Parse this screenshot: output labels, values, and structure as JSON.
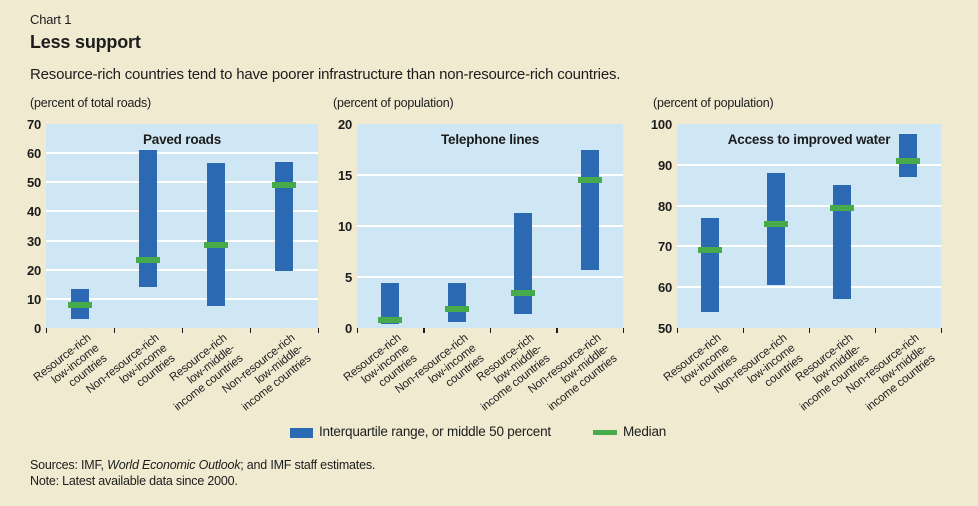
{
  "page": {
    "kicker": "Chart 1",
    "title": "Less support",
    "subtitle": "Resource-rich countries tend to have poorer infrastructure than non-resource-rich countries.",
    "sources_prefix": "Sources: IMF, ",
    "sources_italic": "World Economic Outlook",
    "sources_suffix": "; and IMF staff estimates.",
    "note": "Note: Latest available data since 2000."
  },
  "legend": {
    "iqr_label": "Interquartile range, or middle 50 percent",
    "median_label": "Median"
  },
  "colors": {
    "page_bg": "#f0ead1",
    "plot_bg": "#cfe7f5",
    "bar": "#2b69b2",
    "median": "#47aa4b",
    "gridline": "#ffffff",
    "text": "#1c1c1c"
  },
  "chart_data": [
    {
      "type": "bar",
      "subtype": "interquartile-range",
      "title": "Paved roads",
      "ylabel": "(percent of total roads)",
      "ylim": [
        0,
        70
      ],
      "yticks": [
        0,
        10,
        20,
        30,
        40,
        50,
        60,
        70
      ],
      "grid": true,
      "categories": [
        "Resource-rich low-income countries",
        "Non-resource-rich low-income countries",
        "Resource-rich low-middle-income countries",
        "Non-resource-rich low-middle-income countries"
      ],
      "category_lines": [
        [
          "Resource-rich",
          "low-income",
          "countries"
        ],
        [
          "Non-resource-rich",
          "low-income",
          "countries"
        ],
        [
          "Resource-rich",
          "low-middle-",
          "income countries"
        ],
        [
          "Non-resource-rich",
          "low-middle-",
          "income countries"
        ]
      ],
      "series": [
        {
          "name": "Interquartile range, or middle 50 percent",
          "q1": [
            3,
            14,
            7.5,
            19.5
          ],
          "q3": [
            13.5,
            61,
            56.5,
            57
          ]
        },
        {
          "name": "Median",
          "values": [
            8,
            23.5,
            28.5,
            49
          ]
        }
      ]
    },
    {
      "type": "bar",
      "subtype": "interquartile-range",
      "title": "Telephone lines",
      "ylabel": "(percent of population)",
      "ylim": [
        0,
        20
      ],
      "yticks": [
        0,
        5,
        10,
        15,
        20
      ],
      "grid": true,
      "categories": [
        "Resource-rich low-income countries",
        "Non-resource-rich low-income countries",
        "Resource-rich low-middle-income countries",
        "Non-resource-rich low-middle-income countries"
      ],
      "category_lines": [
        [
          "Resource-rich",
          "low-income",
          "countries"
        ],
        [
          "Non-resource-rich",
          "low-income",
          "countries"
        ],
        [
          "Resource-rich",
          "low-middle-",
          "income countries"
        ],
        [
          "Non-resource-rich",
          "low-middle-",
          "income countries"
        ]
      ],
      "series": [
        {
          "name": "Interquartile range, or middle 50 percent",
          "q1": [
            0.4,
            0.6,
            1.4,
            5.7
          ],
          "q3": [
            4.4,
            4.4,
            11.3,
            17.5
          ]
        },
        {
          "name": "Median",
          "values": [
            0.8,
            1.9,
            3.4,
            14.5
          ]
        }
      ]
    },
    {
      "type": "bar",
      "subtype": "interquartile-range",
      "title": "Access to improved water",
      "ylabel": "(percent of population)",
      "ylim": [
        50,
        100
      ],
      "yticks": [
        50,
        60,
        70,
        80,
        90,
        100
      ],
      "grid": true,
      "categories": [
        "Resource-rich low-income countries",
        "Non-resource-rich low-income countries",
        "Resource-rich low-middle-income countries",
        "Non-resource-rich low-middle-income countries"
      ],
      "category_lines": [
        [
          "Resource-rich",
          "low-income",
          "countries"
        ],
        [
          "Non-resource-rich",
          "low-income",
          "countries"
        ],
        [
          "Resource-rich",
          "low-middle-",
          "income countries"
        ],
        [
          "Non-resource-rich",
          "low-middle-",
          "income countries"
        ]
      ],
      "series": [
        {
          "name": "Interquartile range, or middle 50 percent",
          "q1": [
            54,
            60.5,
            57,
            87
          ],
          "q3": [
            77,
            88,
            85,
            97.5
          ]
        },
        {
          "name": "Median",
          "values": [
            69,
            75.5,
            79.5,
            91
          ]
        }
      ]
    }
  ]
}
